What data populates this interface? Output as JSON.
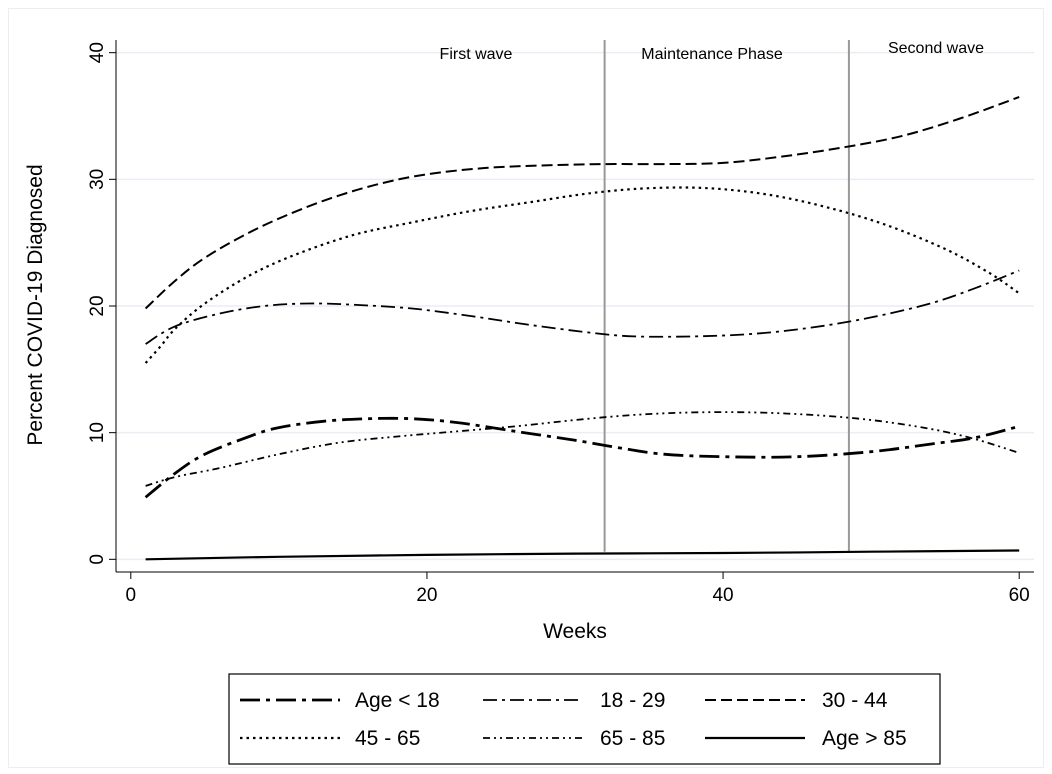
{
  "chart_data": {
    "type": "line",
    "xlabel": "Weeks",
    "ylabel": "Percent COVID-19 Diagnosed",
    "xlim": [
      -1,
      61
    ],
    "ylim": [
      -1,
      41
    ],
    "xticks": [
      0,
      20,
      40,
      60
    ],
    "yticks": [
      0,
      10,
      20,
      30,
      40
    ],
    "phase_labels": [
      "First wave",
      "Maintenance Phase",
      "Second wave"
    ],
    "phase_boundaries": [
      32,
      48.5
    ],
    "legend_position": "bottom",
    "series": [
      {
        "name": "Age < 18",
        "dash": "long-dash-dot",
        "x": [
          1,
          3,
          5,
          8,
          10,
          13,
          16,
          19,
          22,
          26,
          30,
          33,
          36,
          40,
          45,
          50,
          54,
          57,
          60
        ],
        "y": [
          4.9,
          6.8,
          8.3,
          9.7,
          10.4,
          10.9,
          11.1,
          11.1,
          10.8,
          10.1,
          9.4,
          8.8,
          8.3,
          8.1,
          8.1,
          8.5,
          9.1,
          9.6,
          10.5
        ]
      },
      {
        "name": "18 - 29",
        "dash": "dash-dot",
        "x": [
          1,
          3,
          6,
          9,
          12,
          15,
          19,
          23,
          27,
          31,
          34,
          38,
          42,
          46,
          50,
          54,
          57,
          60
        ],
        "y": [
          17.0,
          18.4,
          19.4,
          20.0,
          20.2,
          20.1,
          19.8,
          19.2,
          18.5,
          17.9,
          17.6,
          17.6,
          17.8,
          18.3,
          19.1,
          20.2,
          21.4,
          22.8
        ]
      },
      {
        "name": "30 - 44",
        "dash": "dash",
        "x": [
          1,
          3,
          5,
          8,
          11,
          14,
          17,
          20,
          24,
          28,
          32,
          36,
          40,
          44,
          48,
          52,
          56,
          60
        ],
        "y": [
          19.8,
          22.0,
          23.8,
          25.8,
          27.4,
          28.7,
          29.7,
          30.4,
          30.9,
          31.1,
          31.2,
          31.2,
          31.3,
          31.8,
          32.5,
          33.4,
          34.8,
          36.5
        ]
      },
      {
        "name": "45 - 65",
        "dash": "dot",
        "x": [
          1,
          2,
          3,
          5,
          8,
          11,
          15,
          19,
          23,
          27,
          31,
          35,
          39,
          43,
          47,
          51,
          55,
          58,
          60
        ],
        "y": [
          15.5,
          16.8,
          18.2,
          20.2,
          22.4,
          24.0,
          25.6,
          26.6,
          27.5,
          28.2,
          28.9,
          29.3,
          29.3,
          28.8,
          27.8,
          26.4,
          24.5,
          22.6,
          21.0
        ]
      },
      {
        "name": "65 - 85",
        "dash": "dash-dot-dot",
        "x": [
          1,
          3,
          6,
          10,
          14,
          18,
          22,
          26,
          30,
          34,
          38,
          42,
          46,
          50,
          54,
          57,
          60
        ],
        "y": [
          5.8,
          6.5,
          7.2,
          8.3,
          9.2,
          9.7,
          10.1,
          10.5,
          11.0,
          11.4,
          11.6,
          11.6,
          11.4,
          11.0,
          10.3,
          9.5,
          8.4
        ]
      },
      {
        "name": "Age > 85",
        "dash": "solid",
        "x": [
          1,
          10,
          20,
          30,
          40,
          50,
          60
        ],
        "y": [
          0.0,
          0.2,
          0.35,
          0.45,
          0.5,
          0.6,
          0.7
        ]
      }
    ]
  }
}
